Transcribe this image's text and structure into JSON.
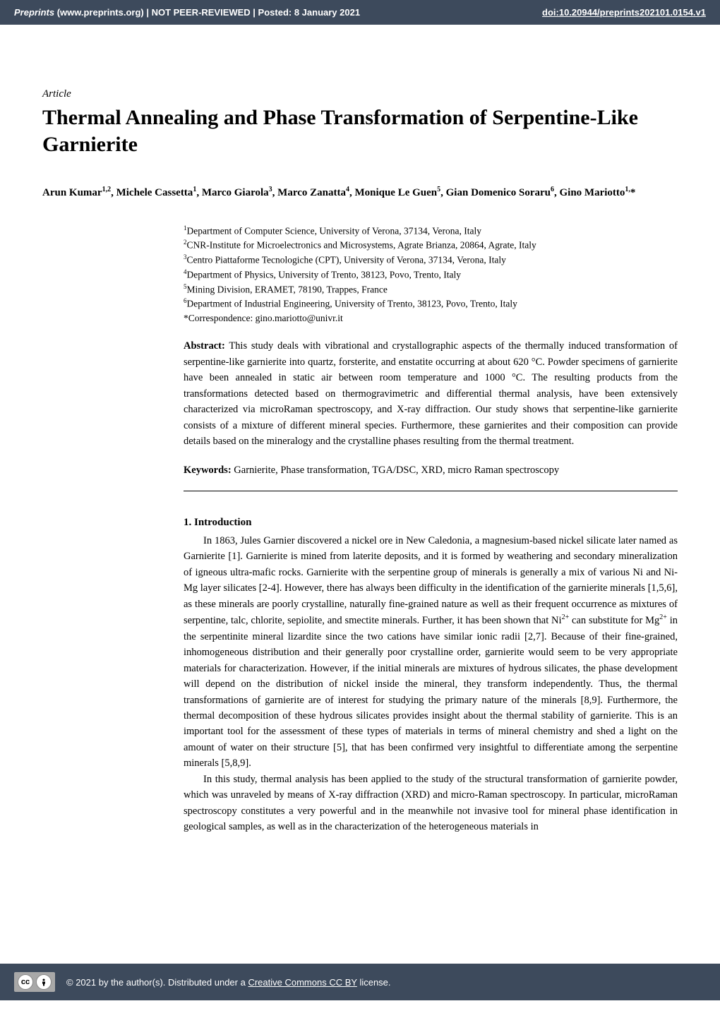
{
  "banner": {
    "site_italic": "Preprints",
    "site_rest": " (www.preprints.org)  |  NOT PEER-REVIEWED  |  Posted: 8 January 2021",
    "doi_label": "doi:10.20944/preprints202101.0154.v1",
    "doi_url": "#"
  },
  "article_label": "Article",
  "title": "Thermal Annealing and Phase Transformation of Serpentine-Like Garnierite",
  "authorsHtml": "Arun Kumar<sup>1,2</sup>, Michele Cassetta<sup>1</sup>, Marco Giarola<sup>3</sup>, Marco Zanatta<sup>4</sup>, Monique Le Guen<sup>5</sup>, Gian Domenico Soraru<sup>6</sup>, Gino Mariotto<sup>1,</sup>*",
  "affiliations": [
    {
      "sup": "1",
      "text": "Department of Computer Science, University of Verona, 37134, Verona, Italy"
    },
    {
      "sup": "2",
      "text": "CNR-Institute for Microelectronics and Microsystems, Agrate Brianza, 20864, Agrate, Italy"
    },
    {
      "sup": "3",
      "text": "Centro Piattaforme Tecnologiche (CPT), University of Verona, 37134, Verona, Italy"
    },
    {
      "sup": "4",
      "text": "Department of Physics, University of Trento, 38123, Povo, Trento, Italy"
    },
    {
      "sup": "5",
      "text": "Mining Division, ERAMET, 78190, Trappes, France"
    },
    {
      "sup": "6",
      "text": "Department of Industrial Engineering, University of Trento, 38123, Povo, Trento, Italy"
    }
  ],
  "correspondence": "*Correspondence: gino.mariotto@univr.it",
  "abstract_label": "Abstract:",
  "abstract_text": " This study deals with vibrational and crystallographic aspects of the thermally induced transformation of serpentine-like garnierite into quartz, forsterite, and enstatite occurring at about 620 °C. Powder specimens of garnierite have been annealed in static air between room temperature and 1000 °C. The resulting products from the transformations detected based on thermogravimetric and differential thermal analysis, have been extensively characterized via microRaman spectroscopy, and X-ray diffraction. Our study shows that serpentine-like garnierite consists of a mixture of different mineral species. Furthermore, these garnierites and their composition can provide details based on the mineralogy and the crystalline phases resulting from the thermal treatment.",
  "keywords_label": "Keywords:",
  "keywords_text": " Garnierite, Phase transformation, TGA/DSC, XRD, micro Raman spectroscopy",
  "section1_title": "1. Introduction",
  "para1": "In 1863, Jules Garnier discovered a nickel ore in New Caledonia, a magnesium-based nickel silicate later named as Garnierite [1]. Garnierite is mined from laterite deposits, and it is formed by weathering and secondary mineralization of igneous ultra-mafic rocks. Garnierite with the serpentine group of minerals is generally a mix of various Ni and Ni-Mg layer silicates [2-4]. However, there has always been difficulty in the identification of the garnierite minerals [1,5,6], as these minerals are poorly crystalline, naturally fine-grained nature as well as their frequent occurrence as mixtures of serpentine, talc, chlorite, sepiolite, and smectite minerals. Further, it has been shown that Ni<sup>2+</sup> can substitute for Mg<sup>2+</sup> in the serpentinite mineral lizardite since the two cations have similar ionic radii [2,7]. Because of their fine-grained, inhomogeneous distribution and their generally poor crystalline order, garnierite would seem to be very appropriate materials for characterization. However, if the initial minerals are mixtures of hydrous silicates, the phase development will depend on the distribution of nickel inside the mineral, they transform independently. Thus, the thermal transformations of garnierite are of interest for studying the primary nature of the minerals [8,9]. Furthermore, the thermal decomposition of these hydrous silicates provides insight about the thermal stability of garnierite. This is an important tool for the assessment of these types of materials in terms of mineral chemistry and shed a light on the amount of water on their structure [5], that has been confirmed very insightful to differentiate among the serpentine minerals [5,8,9].",
  "para2": "In this study, thermal analysis has been applied to the study of the structural transformation of garnierite powder, which was unraveled by means of X-ray diffraction (XRD) and micro-Raman spectroscopy. In particular, microRaman spectroscopy constitutes a very powerful and in the meanwhile not invasive tool for mineral phase identification in geological samples, as well as in the characterization of the heterogeneous materials in",
  "footer": {
    "copyright_prefix": "©  2021 by the author(s). Distributed under a ",
    "license_link_text": "Creative Commons CC BY",
    "license_suffix": " license."
  },
  "colors": {
    "banner_bg": "#3d4a5c",
    "banner_fg": "#ffffff",
    "page_bg": "#ffffff",
    "text": "#000000"
  },
  "typography": {
    "title_fontsize_pt": 22,
    "body_fontsize_pt": 11,
    "font_family": "Palatino Linotype"
  }
}
